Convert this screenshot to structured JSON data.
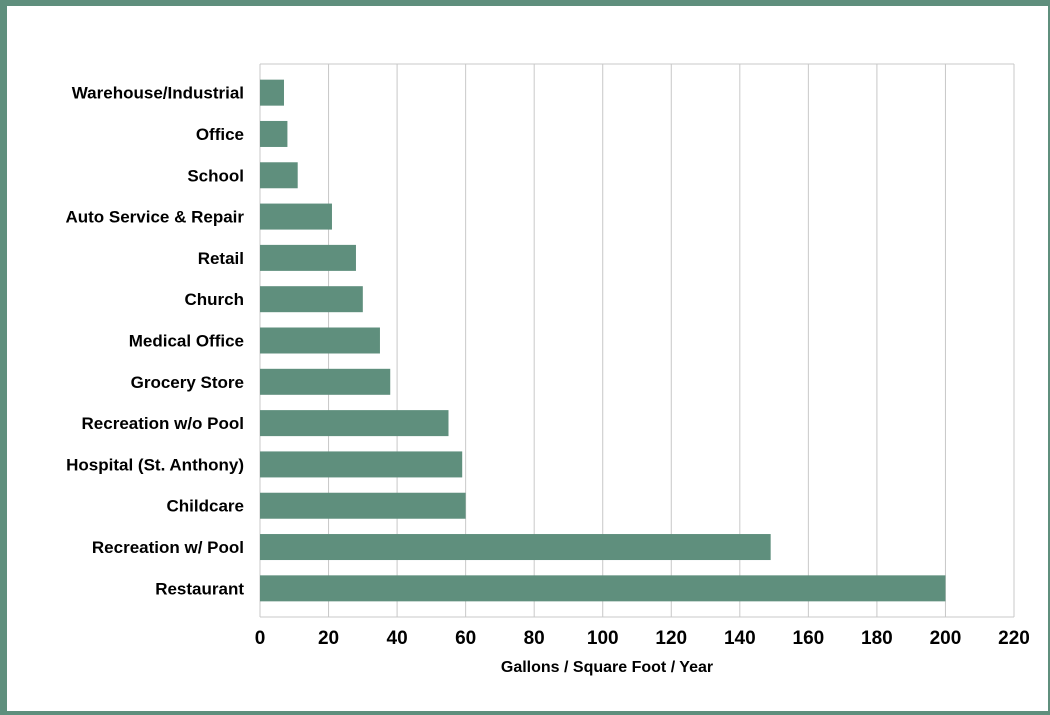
{
  "chart_data": {
    "type": "bar",
    "orientation": "horizontal",
    "categories": [
      "Warehouse/Industrial",
      "Office",
      "School",
      "Auto Service & Repair",
      "Retail",
      "Church",
      "Medical Office",
      "Grocery Store",
      "Recreation w/o Pool",
      "Hospital (St. Anthony)",
      "Childcare",
      "Recreation w/ Pool",
      "Restaurant"
    ],
    "values": [
      7,
      8,
      11,
      21,
      28,
      30,
      35,
      38,
      55,
      59,
      60,
      149,
      200
    ],
    "xlabel": "Gallons / Square Foot / Year",
    "ylabel": "",
    "xlim": [
      0,
      220
    ],
    "xticks": [
      "0",
      "20",
      "40",
      "60",
      "80",
      "100",
      "120",
      "140",
      "160",
      "180",
      "200",
      "220"
    ],
    "grid": true,
    "bar_color": "#5f8f7d",
    "frame_color": "#5f8f7d"
  }
}
